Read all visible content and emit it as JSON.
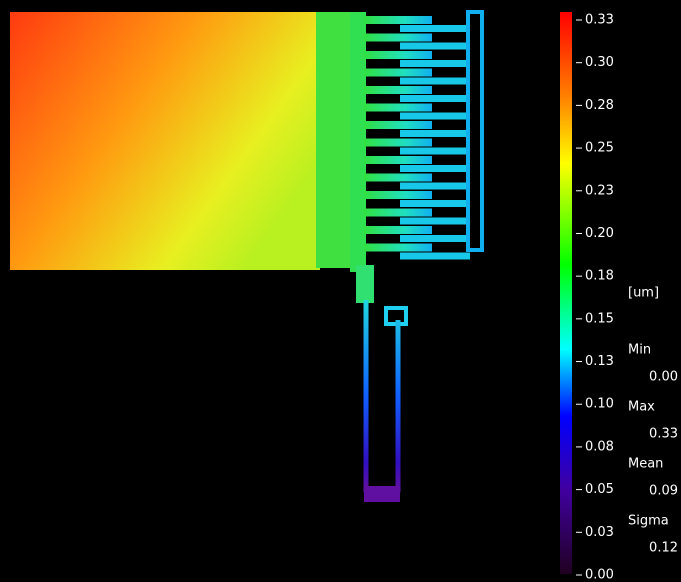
{
  "colorbar": {
    "ticks": [
      "0.33",
      "0.30",
      "0.28",
      "0.25",
      "0.23",
      "0.20",
      "0.18",
      "0.15",
      "0.13",
      "0.10",
      "0.08",
      "0.05",
      "0.03",
      "0.00"
    ],
    "unit": "[um]"
  },
  "stats": [
    {
      "label": "Min",
      "value": "0.00"
    },
    {
      "label": "Max",
      "value": "0.33"
    },
    {
      "label": "Mean",
      "value": "0.09"
    },
    {
      "label": "Sigma",
      "value": "0.12"
    }
  ]
}
